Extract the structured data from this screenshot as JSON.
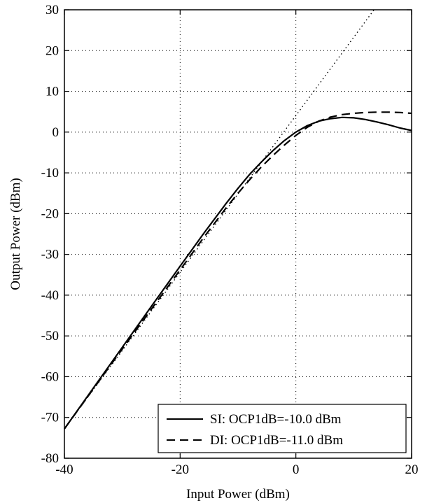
{
  "chart_data": {
    "type": "line",
    "title": "",
    "xlabel": "Input Power (dBm)",
    "ylabel": "Output Power (dBm)",
    "xlim": [
      -40,
      20
    ],
    "ylim": [
      -80,
      30
    ],
    "xticks": [
      -40,
      -20,
      0,
      20
    ],
    "yticks": [
      -80,
      -70,
      -60,
      -50,
      -40,
      -30,
      -20,
      -10,
      0,
      10,
      20,
      30
    ],
    "grid": "dotted",
    "legend_position": "bottom-right",
    "series": [
      {
        "name": "SI: OCP1dB=-10.0 dBm",
        "style": "solid",
        "x": [
          -40,
          -35,
          -30,
          -25,
          -20,
          -16,
          -12,
          -10,
          -8,
          -6,
          -4,
          -2,
          0,
          2,
          4,
          6,
          8,
          10,
          12,
          14,
          16,
          18,
          20
        ],
        "y": [
          -72.8,
          -62.8,
          -52.8,
          -42.8,
          -32.9,
          -25.0,
          -17.4,
          -13.8,
          -10.4,
          -7.4,
          -4.6,
          -2.1,
          0.0,
          1.6,
          2.7,
          3.3,
          3.6,
          3.5,
          3.1,
          2.5,
          1.8,
          1.0,
          0.4
        ]
      },
      {
        "name": "DI: OCP1dB=-11.0 dBm",
        "style": "dashed",
        "x": [
          -40,
          -35,
          -30,
          -25,
          -20,
          -16,
          -12,
          -10,
          -8,
          -6,
          -4,
          -2,
          0,
          2,
          4,
          6,
          8,
          10,
          12,
          14,
          16,
          18,
          20
        ],
        "y": [
          -72.8,
          -63.0,
          -53.2,
          -43.5,
          -33.8,
          -26.0,
          -18.5,
          -15.0,
          -11.7,
          -8.6,
          -5.8,
          -3.2,
          -0.8,
          1.2,
          2.7,
          3.7,
          4.3,
          4.6,
          4.8,
          4.9,
          4.9,
          4.8,
          4.6
        ]
      },
      {
        "name": "",
        "style": "dotted",
        "x": [
          -40,
          13.5
        ],
        "y": [
          -72.8,
          30
        ]
      }
    ]
  }
}
